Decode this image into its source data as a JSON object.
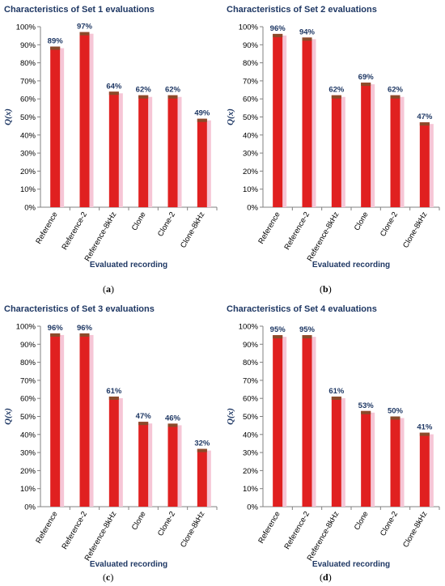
{
  "chart_data": [
    {
      "type": "bar",
      "title": "Characteristics of Set 1 evaluations",
      "ylabel": "Q(x)",
      "xlabel": "Evaluated recording",
      "ylim": [
        0,
        100
      ],
      "yticks": [
        "0%",
        "10%",
        "20%",
        "30%",
        "40%",
        "50%",
        "60%",
        "70%",
        "80%",
        "90%",
        "100%"
      ],
      "categories": [
        "Reference",
        "Reference-2",
        "Reference-8kHz",
        "Clone",
        "Clone-2",
        "Clone-8kHz"
      ],
      "values": [
        89,
        97,
        64,
        62,
        62,
        49
      ],
      "data_labels": [
        "89%",
        "97%",
        "64%",
        "62%",
        "62%",
        "49%"
      ],
      "panel": "a",
      "grid": false
    },
    {
      "type": "bar",
      "title": "Characteristics of Set 2 evaluations",
      "ylabel": "Q(x)",
      "xlabel": "Evaluated recording",
      "ylim": [
        0,
        100
      ],
      "yticks": [
        "0%",
        "10%",
        "20%",
        "30%",
        "40%",
        "50%",
        "60%",
        "70%",
        "80%",
        "90%",
        "100%"
      ],
      "categories": [
        "Reference",
        "Reference-2",
        "Reference-8kHz",
        "Clone",
        "Clone-2",
        "Clone-8kHz"
      ],
      "values": [
        96,
        94,
        62,
        69,
        62,
        47
      ],
      "data_labels": [
        "96%",
        "94%",
        "62%",
        "69%",
        "62%",
        "47%"
      ],
      "panel": "b",
      "grid": false
    },
    {
      "type": "bar",
      "title": "Characteristics of Set 3 evaluations",
      "ylabel": "Q(x)",
      "xlabel": "Evaluated recording",
      "ylim": [
        0,
        100
      ],
      "yticks": [
        "0%",
        "10%",
        "20%",
        "30%",
        "40%",
        "50%",
        "60%",
        "70%",
        "80%",
        "90%",
        "100%"
      ],
      "categories": [
        "Reference",
        "Reference-2",
        "Reference-8kHz",
        "Clone",
        "Clone-2",
        "Clone-8kHz"
      ],
      "values": [
        96,
        96,
        61,
        47,
        46,
        32
      ],
      "data_labels": [
        "96%",
        "96%",
        "61%",
        "47%",
        "46%",
        "32%"
      ],
      "panel": "c",
      "grid": false
    },
    {
      "type": "bar",
      "title": "Characteristics of Set 4 evaluations",
      "ylabel": "Q(x)",
      "xlabel": "Evaluated recording",
      "ylim": [
        0,
        100
      ],
      "yticks": [
        "0%",
        "10%",
        "20%",
        "30%",
        "40%",
        "50%",
        "60%",
        "70%",
        "80%",
        "90%",
        "100%"
      ],
      "categories": [
        "Reference",
        "Reference-2",
        "Reference-8kHz",
        "Clone",
        "Clone-2",
        "Clone-8kHz"
      ],
      "values": [
        95,
        95,
        61,
        53,
        50,
        41
      ],
      "data_labels": [
        "95%",
        "95%",
        "61%",
        "53%",
        "50%",
        "41%"
      ],
      "panel": "d",
      "grid": false
    }
  ],
  "panels": {
    "a": {
      "open": "(",
      "letter": "a",
      "close": ")"
    },
    "b": {
      "open": "(",
      "letter": "b",
      "close": ")"
    },
    "c": {
      "open": "(",
      "letter": "c",
      "close": ")"
    },
    "d": {
      "open": "(",
      "letter": "d",
      "close": ")"
    }
  },
  "colors": {
    "bar_fill": "#e02020",
    "bar_top": "#8b4a2a",
    "bar_side": "#f6c6d6",
    "text_dark_blue": "#1f3864",
    "axis": "#808080"
  }
}
